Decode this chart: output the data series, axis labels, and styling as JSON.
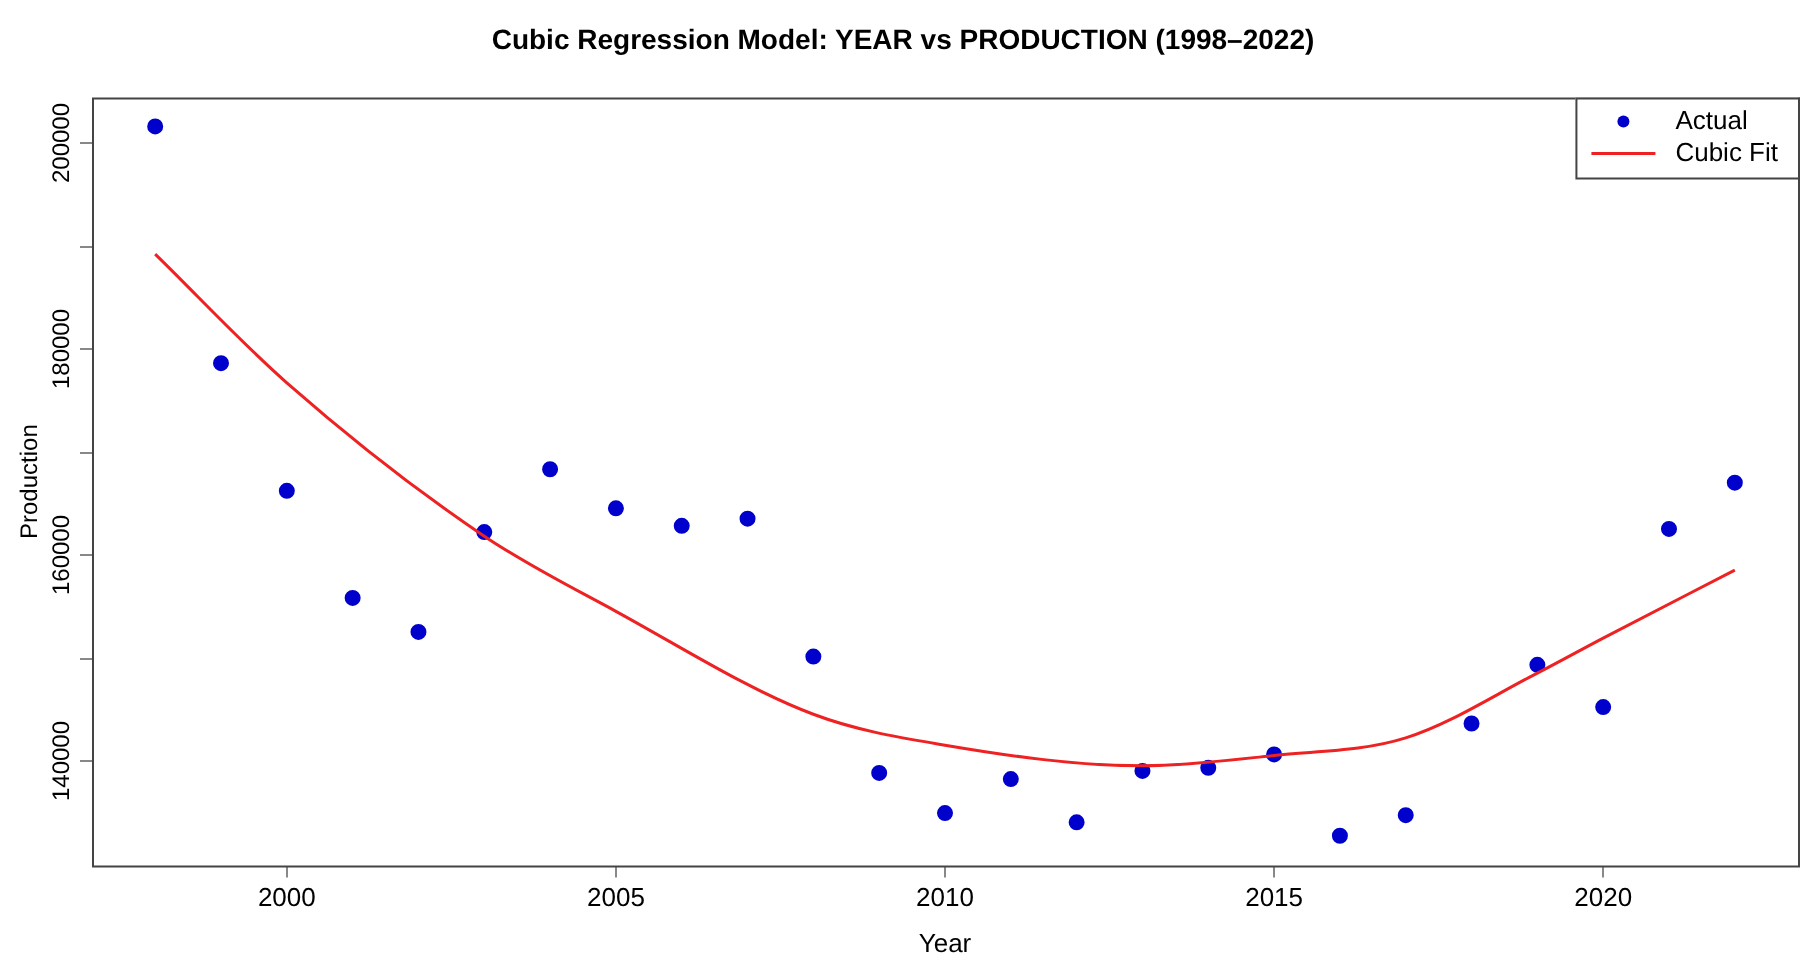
{
  "chart_data": {
    "type": "scatter",
    "title": "Cubic Regression Model: YEAR vs PRODUCTION (1998–2022)",
    "xlabel": "Year",
    "ylabel": "Production",
    "xlim": [
      1997.04,
      2022.96
    ],
    "xticks": [
      2000,
      2005,
      2010,
      2015,
      2020
    ],
    "ylim": [
      129800,
      204400
    ],
    "yticks": [
      140000,
      {
        "value": 150000,
        "label": null
      },
      160000,
      {
        "value": 170000,
        "label": null
      },
      180000,
      {
        "value": 190000,
        "label": null
      },
      200000
    ],
    "grid": false,
    "legend": "top right",
    "marker": "circle",
    "series": [
      {
        "name": "Actual",
        "color": "#0000cc",
        "x": [
          1998,
          1999,
          2000,
          2001,
          2002,
          2003,
          2004,
          2005,
          2006,
          2007,
          2008,
          2009,
          2010,
          2011,
          2012,
          2013,
          2014,
          2015,
          2016,
          2017,
          2018,
          2019,
          2020,
          2021,
          2022
        ],
        "values": [
          201600,
          178600,
          166200,
          155800,
          152500,
          162200,
          168300,
          164500,
          162800,
          163500,
          150100,
          138800,
          134900,
          138200,
          134000,
          139000,
          139300,
          140600,
          132700,
          134700,
          143600,
          149300,
          145200,
          162500,
          167000
        ]
      },
      {
        "name": "Cubic Fit",
        "type": "line",
        "color": "#ee2222",
        "marker": "none",
        "line_style": "solid",
        "x": [
          1998,
          2000,
          2003,
          2005,
          2008,
          2010,
          2013,
          2015,
          2017,
          2019,
          2020,
          2022
        ],
        "values": [
          189200,
          176700,
          161800,
          154500,
          144500,
          141500,
          139500,
          140500,
          142200,
          148500,
          151900,
          158500
        ]
      }
    ]
  }
}
